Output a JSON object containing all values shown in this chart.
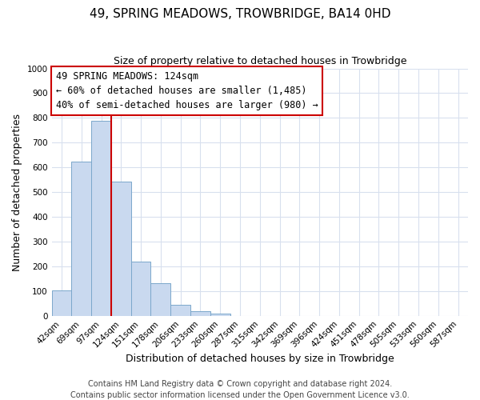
{
  "title": "49, SPRING MEADOWS, TROWBRIDGE, BA14 0HD",
  "subtitle": "Size of property relative to detached houses in Trowbridge",
  "xlabel": "Distribution of detached houses by size in Trowbridge",
  "ylabel": "Number of detached properties",
  "footer_lines": [
    "Contains HM Land Registry data © Crown copyright and database right 2024.",
    "Contains public sector information licensed under the Open Government Licence v3.0."
  ],
  "bin_labels": [
    "42sqm",
    "69sqm",
    "97sqm",
    "124sqm",
    "151sqm",
    "178sqm",
    "206sqm",
    "233sqm",
    "260sqm",
    "287sqm",
    "315sqm",
    "342sqm",
    "369sqm",
    "396sqm",
    "424sqm",
    "451sqm",
    "478sqm",
    "505sqm",
    "533sqm",
    "560sqm",
    "587sqm"
  ],
  "bar_values": [
    103,
    623,
    787,
    543,
    220,
    133,
    45,
    18,
    10,
    0,
    0,
    0,
    0,
    0,
    0,
    0,
    0,
    0,
    0,
    0,
    0
  ],
  "bar_color": "#c9d9ef",
  "bar_edge_color": "#7ba7cb",
  "vline_color": "#cc0000",
  "ylim": [
    0,
    1000
  ],
  "yticks": [
    0,
    100,
    200,
    300,
    400,
    500,
    600,
    700,
    800,
    900,
    1000
  ],
  "annotation_title": "49 SPRING MEADOWS: 124sqm",
  "annotation_line1": "← 60% of detached houses are smaller (1,485)",
  "annotation_line2": "40% of semi-detached houses are larger (980) →",
  "annotation_box_color": "#ffffff",
  "annotation_box_edge": "#cc0000",
  "title_fontsize": 11,
  "subtitle_fontsize": 9,
  "xlabel_fontsize": 9,
  "ylabel_fontsize": 9,
  "annotation_fontsize": 8.5,
  "tick_fontsize": 7.5,
  "footer_fontsize": 7,
  "grid_color": "#d8e0ee"
}
